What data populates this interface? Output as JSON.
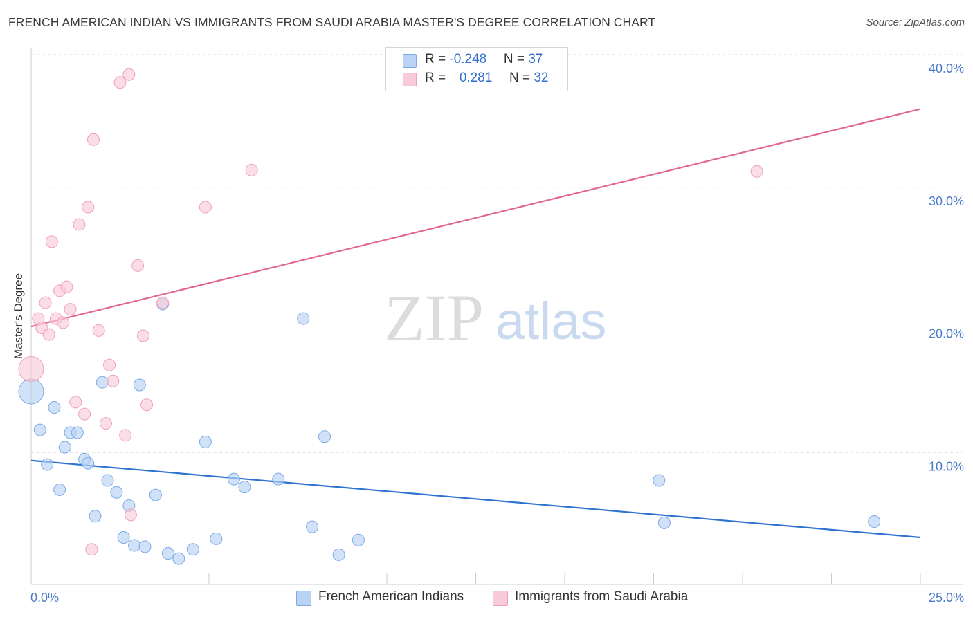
{
  "chart_data": {
    "type": "scatter",
    "title": "FRENCH AMERICAN INDIAN VS IMMIGRANTS FROM SAUDI ARABIA MASTER'S DEGREE CORRELATION CHART",
    "source": "Source: ZipAtlas.com",
    "watermark": {
      "zip": "ZIP",
      "atlas": "atlas"
    },
    "ylabel": "Master's Degree",
    "xlim": [
      0,
      25
    ],
    "ylim": [
      0,
      40
    ],
    "y_ticks": [
      10,
      20,
      30,
      40
    ],
    "y_tick_labels": [
      "10.0%",
      "20.0%",
      "30.0%",
      "40.0%"
    ],
    "x_tick_labels": {
      "min": "0.0%",
      "max": "25.0%"
    },
    "legend_stats": [
      {
        "r_label": "R = ",
        "r_value": "-0.248",
        "n_label": "N = ",
        "n_value": "37"
      },
      {
        "r_label": "R = ",
        "r_value": "0.281",
        "n_label": "N = ",
        "n_value": "32"
      }
    ],
    "series": [
      {
        "name": "French American Indians",
        "color": "#7aaae8",
        "fill": "#b9d3f5",
        "line_color": "#2e72d2",
        "trend": {
          "x": [
            0,
            25
          ],
          "y": [
            9.4,
            3.6
          ]
        },
        "points": [
          {
            "x": 0.0,
            "y": 14.6,
            "big": true
          },
          {
            "x": 0.25,
            "y": 11.7
          },
          {
            "x": 0.45,
            "y": 9.1
          },
          {
            "x": 0.65,
            "y": 13.4
          },
          {
            "x": 0.8,
            "y": 7.2
          },
          {
            "x": 0.95,
            "y": 10.4
          },
          {
            "x": 1.1,
            "y": 11.5
          },
          {
            "x": 1.3,
            "y": 11.5
          },
          {
            "x": 1.5,
            "y": 9.5
          },
          {
            "x": 1.6,
            "y": 9.2
          },
          {
            "x": 1.8,
            "y": 5.2
          },
          {
            "x": 2.0,
            "y": 15.3
          },
          {
            "x": 2.15,
            "y": 7.9
          },
          {
            "x": 2.4,
            "y": 7.0
          },
          {
            "x": 2.6,
            "y": 3.6
          },
          {
            "x": 2.75,
            "y": 6.0
          },
          {
            "x": 2.9,
            "y": 3.0
          },
          {
            "x": 3.05,
            "y": 15.1
          },
          {
            "x": 3.2,
            "y": 2.9
          },
          {
            "x": 3.5,
            "y": 6.8
          },
          {
            "x": 3.7,
            "y": 21.2
          },
          {
            "x": 3.85,
            "y": 2.4
          },
          {
            "x": 4.15,
            "y": 2.0
          },
          {
            "x": 4.55,
            "y": 2.7
          },
          {
            "x": 4.9,
            "y": 10.8
          },
          {
            "x": 5.2,
            "y": 3.5
          },
          {
            "x": 5.7,
            "y": 8.0
          },
          {
            "x": 6.0,
            "y": 7.4
          },
          {
            "x": 6.95,
            "y": 8.0
          },
          {
            "x": 7.65,
            "y": 20.1
          },
          {
            "x": 7.9,
            "y": 4.4
          },
          {
            "x": 8.25,
            "y": 11.2
          },
          {
            "x": 8.65,
            "y": 2.3
          },
          {
            "x": 9.2,
            "y": 3.4
          },
          {
            "x": 17.65,
            "y": 7.9
          },
          {
            "x": 17.8,
            "y": 4.7
          },
          {
            "x": 23.7,
            "y": 4.8
          }
        ]
      },
      {
        "name": "Immigrants from Saudi Arabia",
        "color": "#f0a0b8",
        "fill": "#f9cbd8",
        "line_color": "#e2678f",
        "trend": {
          "x": [
            0,
            25
          ],
          "y": [
            19.5,
            35.9
          ]
        },
        "points": [
          {
            "x": 0.0,
            "y": 16.3,
            "big": true
          },
          {
            "x": 0.2,
            "y": 20.1
          },
          {
            "x": 0.3,
            "y": 19.4
          },
          {
            "x": 0.4,
            "y": 21.3
          },
          {
            "x": 0.5,
            "y": 18.9
          },
          {
            "x": 0.58,
            "y": 25.9
          },
          {
            "x": 0.7,
            "y": 20.1
          },
          {
            "x": 0.8,
            "y": 22.2
          },
          {
            "x": 0.9,
            "y": 19.8
          },
          {
            "x": 1.0,
            "y": 22.5
          },
          {
            "x": 1.1,
            "y": 20.8
          },
          {
            "x": 1.25,
            "y": 13.8
          },
          {
            "x": 1.35,
            "y": 27.2
          },
          {
            "x": 1.5,
            "y": 12.9
          },
          {
            "x": 1.6,
            "y": 28.5
          },
          {
            "x": 1.75,
            "y": 33.6
          },
          {
            "x": 1.9,
            "y": 19.2
          },
          {
            "x": 2.1,
            "y": 12.2
          },
          {
            "x": 2.2,
            "y": 16.6
          },
          {
            "x": 2.3,
            "y": 15.4
          },
          {
            "x": 2.5,
            "y": 37.9
          },
          {
            "x": 2.65,
            "y": 11.3
          },
          {
            "x": 2.75,
            "y": 38.5
          },
          {
            "x": 2.8,
            "y": 5.3
          },
          {
            "x": 3.0,
            "y": 24.1
          },
          {
            "x": 3.15,
            "y": 18.8
          },
          {
            "x": 3.25,
            "y": 13.6
          },
          {
            "x": 3.7,
            "y": 21.3
          },
          {
            "x": 4.9,
            "y": 28.5
          },
          {
            "x": 6.2,
            "y": 31.3
          },
          {
            "x": 1.7,
            "y": 2.7
          },
          {
            "x": 20.4,
            "y": 31.2
          }
        ]
      }
    ]
  }
}
